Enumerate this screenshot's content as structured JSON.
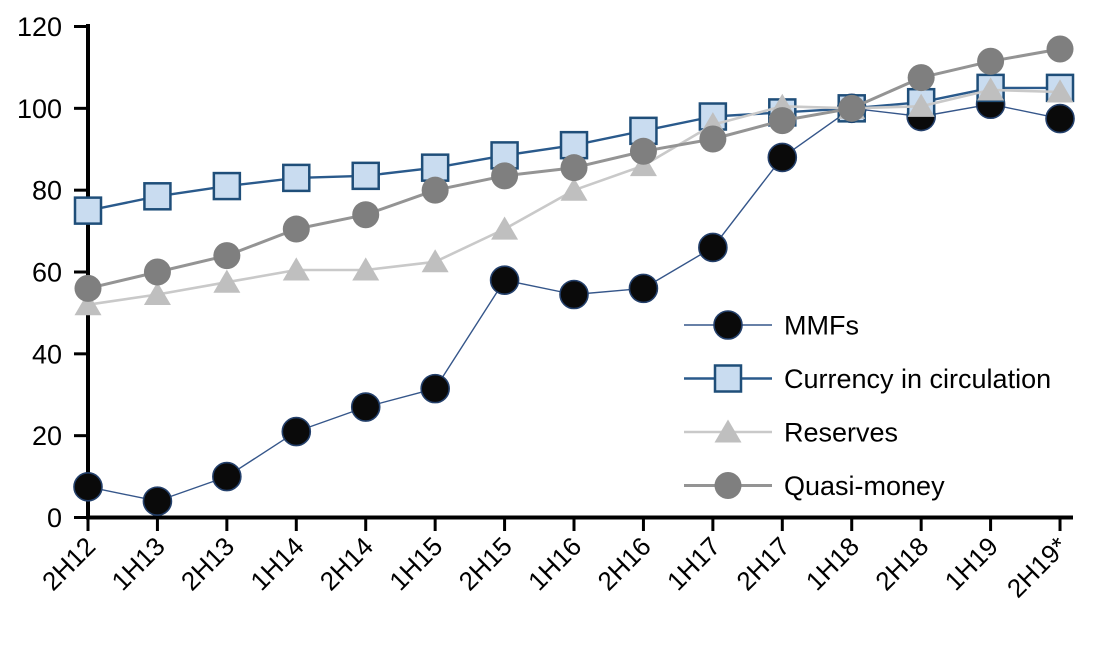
{
  "chart_data": {
    "type": "line",
    "title": "",
    "xlabel": "",
    "ylabel": "",
    "ylim": [
      0,
      120
    ],
    "yticks": [
      0,
      20,
      40,
      60,
      80,
      100,
      120
    ],
    "grid": false,
    "legend_position": "inside-right",
    "background": "#ffffff",
    "axis_color": "#000000",
    "categories": [
      "2H12",
      "1H13",
      "2H13",
      "1H14",
      "2H14",
      "1H15",
      "2H15",
      "1H16",
      "2H16",
      "1H17",
      "2H17",
      "1H18",
      "2H18",
      "1H19",
      "2H19*"
    ],
    "series": [
      {
        "name": "MMFs",
        "marker": "circle",
        "marker_fill": "#0a0a0a",
        "marker_stroke": "#24406b",
        "marker_stroke_width": 1.6,
        "line_color": "#35568a",
        "line_width": 1.4,
        "marker_size": 28,
        "values": [
          7.5,
          4,
          10,
          21,
          27,
          31.5,
          58,
          54.5,
          56,
          66,
          88,
          100,
          98,
          101,
          97.5
        ]
      },
      {
        "name": "Currency in circulation",
        "marker": "square",
        "marker_fill": "#c9dcf0",
        "marker_stroke": "#1f4e79",
        "marker_stroke_width": 2.5,
        "line_color": "#2a5a8c",
        "line_width": 2.4,
        "marker_size": 26,
        "values": [
          75,
          78.5,
          81,
          83,
          83.5,
          85.5,
          88.5,
          91,
          94.5,
          98,
          99,
          100,
          101.5,
          105,
          105
        ]
      },
      {
        "name": "Reserves",
        "marker": "triangle",
        "marker_fill": "#bfbfbf",
        "marker_stroke": "none",
        "marker_stroke_width": 0,
        "line_color": "#c9c9c9",
        "line_width": 2.6,
        "marker_size": 27,
        "values": [
          52,
          54.5,
          57.5,
          60.5,
          60.5,
          62.5,
          70.5,
          80,
          86,
          96,
          100.5,
          100,
          100.5,
          104.5,
          104
        ]
      },
      {
        "name": "Quasi-money",
        "marker": "circle",
        "marker_fill": "#7f7f7f",
        "marker_stroke": "none",
        "marker_stroke_width": 0,
        "line_color": "#949494",
        "line_width": 3,
        "marker_size": 27,
        "values": [
          56,
          60,
          64,
          70.5,
          74,
          80,
          83.5,
          85.5,
          89.5,
          92.5,
          97,
          100,
          107.5,
          111.5,
          114.5
        ]
      }
    ]
  }
}
